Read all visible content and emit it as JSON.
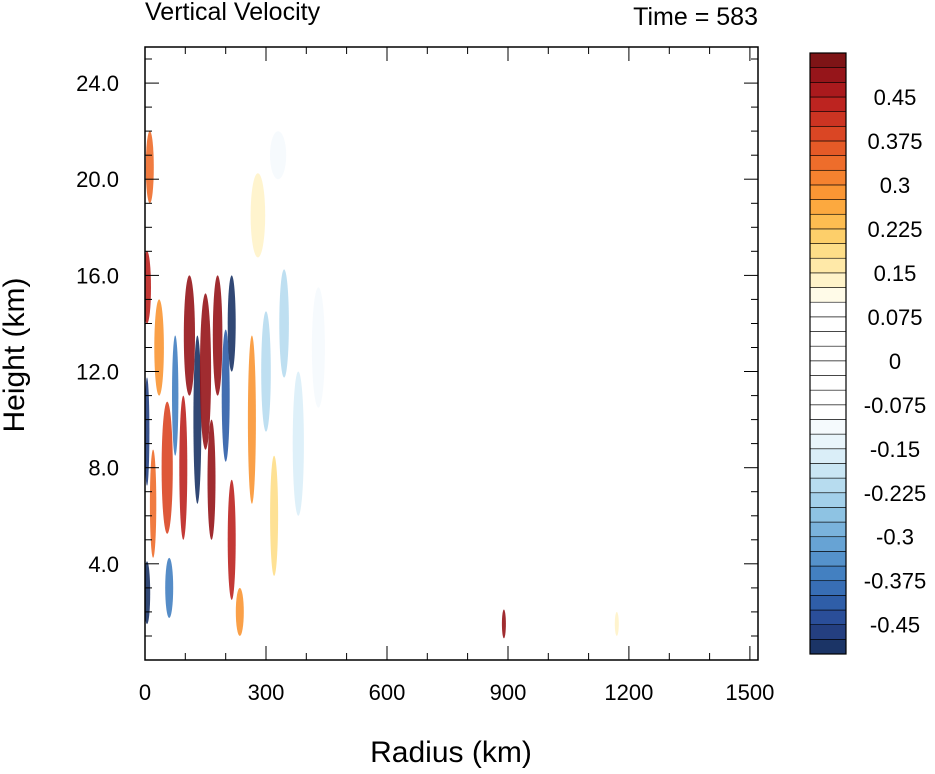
{
  "chart_data": {
    "type": "heatmap",
    "title": "Vertical Velocity",
    "right_title": "Time = 583",
    "xlabel": "Radius (km)",
    "ylabel": "Height (km)",
    "xlim": [
      0,
      1520
    ],
    "ylim": [
      0,
      25.5
    ],
    "x_ticks": [
      0,
      300,
      600,
      900,
      1200,
      1500
    ],
    "x_tick_labels": [
      "0",
      "300",
      "600",
      "900",
      "1200",
      "1500"
    ],
    "y_ticks": [
      4,
      8,
      12,
      16,
      20,
      24
    ],
    "y_tick_labels": [
      "4.0",
      "8.0",
      "12.0",
      "16.0",
      "20.0",
      "24.0"
    ],
    "colorbar": {
      "levels": [
        -0.5,
        -0.475,
        -0.45,
        -0.425,
        -0.4,
        -0.375,
        -0.35,
        -0.325,
        -0.3,
        -0.275,
        -0.25,
        -0.225,
        -0.2,
        -0.175,
        -0.15,
        -0.125,
        -0.1,
        -0.075,
        -0.05,
        -0.025,
        0,
        0.025,
        0.05,
        0.075,
        0.1,
        0.125,
        0.15,
        0.175,
        0.2,
        0.225,
        0.25,
        0.275,
        0.3,
        0.325,
        0.35,
        0.375,
        0.4,
        0.425,
        0.45,
        0.475,
        0.5
      ],
      "labels": [
        {
          "value": 0.45,
          "text": "0.45"
        },
        {
          "value": 0.375,
          "text": "0.375"
        },
        {
          "value": 0.3,
          "text": "0.3"
        },
        {
          "value": 0.225,
          "text": "0.225"
        },
        {
          "value": 0.15,
          "text": "0.15"
        },
        {
          "value": 0.075,
          "text": "0.075"
        },
        {
          "value": 0,
          "text": "0"
        },
        {
          "value": -0.075,
          "text": "-0.075"
        },
        {
          "value": -0.15,
          "text": "-0.15"
        },
        {
          "value": -0.225,
          "text": "-0.225"
        },
        {
          "value": -0.3,
          "text": "-0.3"
        },
        {
          "value": -0.375,
          "text": "-0.375"
        },
        {
          "value": -0.45,
          "text": "-0.45"
        }
      ],
      "palette": [
        "#1b3466",
        "#243f80",
        "#2a4e99",
        "#2f5ea8",
        "#386eb5",
        "#4380c1",
        "#5592cb",
        "#67a3d4",
        "#7ab3dc",
        "#8ec3e3",
        "#a3d0ea",
        "#b7dcef",
        "#c9e6f4",
        "#daeef8",
        "#e9f5fb",
        "#f5fafd",
        "#ffffff",
        "#ffffff",
        "#ffffff",
        "#ffffff",
        "#ffffff",
        "#ffffff",
        "#ffffff",
        "#ffffff",
        "#fffbe8",
        "#fff3c9",
        "#ffe9a8",
        "#fede88",
        "#fdcf6a",
        "#fdbd51",
        "#fca93f",
        "#fa9634",
        "#f5822f",
        "#ee6d2b",
        "#e55a27",
        "#da4624",
        "#cc3422",
        "#bd2420",
        "#aa1a1d",
        "#96151a",
        "#7e1416"
      ]
    },
    "features": [
      {
        "r": 5,
        "z": 2.8,
        "w": 8,
        "h": 2.6,
        "v": -0.5
      },
      {
        "r": 5,
        "z": 9.5,
        "w": 6,
        "h": 4.5,
        "v": -0.45
      },
      {
        "r": 5,
        "z": 15.5,
        "w": 10,
        "h": 3.0,
        "v": 0.45
      },
      {
        "r": 12,
        "z": 20.5,
        "w": 10,
        "h": 3.0,
        "v": 0.35
      },
      {
        "r": 20,
        "z": 6.5,
        "w": 8,
        "h": 4.5,
        "v": 0.35
      },
      {
        "r": 35,
        "z": 13.0,
        "w": 12,
        "h": 4.0,
        "v": 0.3
      },
      {
        "r": 55,
        "z": 8.0,
        "w": 14,
        "h": 5.5,
        "v": 0.4
      },
      {
        "r": 60,
        "z": 3.0,
        "w": 10,
        "h": 2.5,
        "v": -0.35
      },
      {
        "r": 75,
        "z": 11.0,
        "w": 8,
        "h": 5.0,
        "v": -0.35
      },
      {
        "r": 95,
        "z": 8.0,
        "w": 10,
        "h": 6.0,
        "v": 0.45
      },
      {
        "r": 110,
        "z": 13.5,
        "w": 14,
        "h": 5.0,
        "v": 0.5
      },
      {
        "r": 130,
        "z": 10.0,
        "w": 10,
        "h": 7.0,
        "v": -0.5
      },
      {
        "r": 150,
        "z": 12.0,
        "w": 14,
        "h": 6.5,
        "v": 0.5
      },
      {
        "r": 165,
        "z": 7.5,
        "w": 10,
        "h": 5.0,
        "v": 0.5
      },
      {
        "r": 180,
        "z": 13.5,
        "w": 12,
        "h": 5.0,
        "v": 0.5
      },
      {
        "r": 200,
        "z": 11.0,
        "w": 10,
        "h": 5.5,
        "v": -0.4
      },
      {
        "r": 215,
        "z": 14.0,
        "w": 10,
        "h": 4.0,
        "v": -0.5
      },
      {
        "r": 215,
        "z": 5.0,
        "w": 10,
        "h": 5.0,
        "v": 0.45
      },
      {
        "r": 235,
        "z": 2.0,
        "w": 10,
        "h": 2.0,
        "v": 0.3
      },
      {
        "r": 265,
        "z": 10.0,
        "w": 10,
        "h": 7.0,
        "v": 0.3
      },
      {
        "r": 300,
        "z": 12.0,
        "w": 12,
        "h": 5.0,
        "v": -0.2
      },
      {
        "r": 320,
        "z": 6.0,
        "w": 10,
        "h": 5.0,
        "v": 0.2
      },
      {
        "r": 345,
        "z": 14.0,
        "w": 12,
        "h": 4.5,
        "v": -0.2
      },
      {
        "r": 380,
        "z": 9.0,
        "w": 14,
        "h": 6.0,
        "v": -0.15
      },
      {
        "r": 430,
        "z": 13.0,
        "w": 16,
        "h": 5.0,
        "v": -0.12
      },
      {
        "r": 470,
        "z": 10.0,
        "w": 16,
        "h": 6.0,
        "v": 0.08
      },
      {
        "r": 280,
        "z": 18.5,
        "w": 18,
        "h": 3.5,
        "v": 0.15
      },
      {
        "r": 330,
        "z": 21.0,
        "w": 20,
        "h": 2.0,
        "v": -0.12
      },
      {
        "r": 890,
        "z": 1.5,
        "w": 4,
        "h": 1.2,
        "v": 0.5
      },
      {
        "r": 1170,
        "z": 1.5,
        "w": 5,
        "h": 1.0,
        "v": 0.15
      }
    ]
  }
}
